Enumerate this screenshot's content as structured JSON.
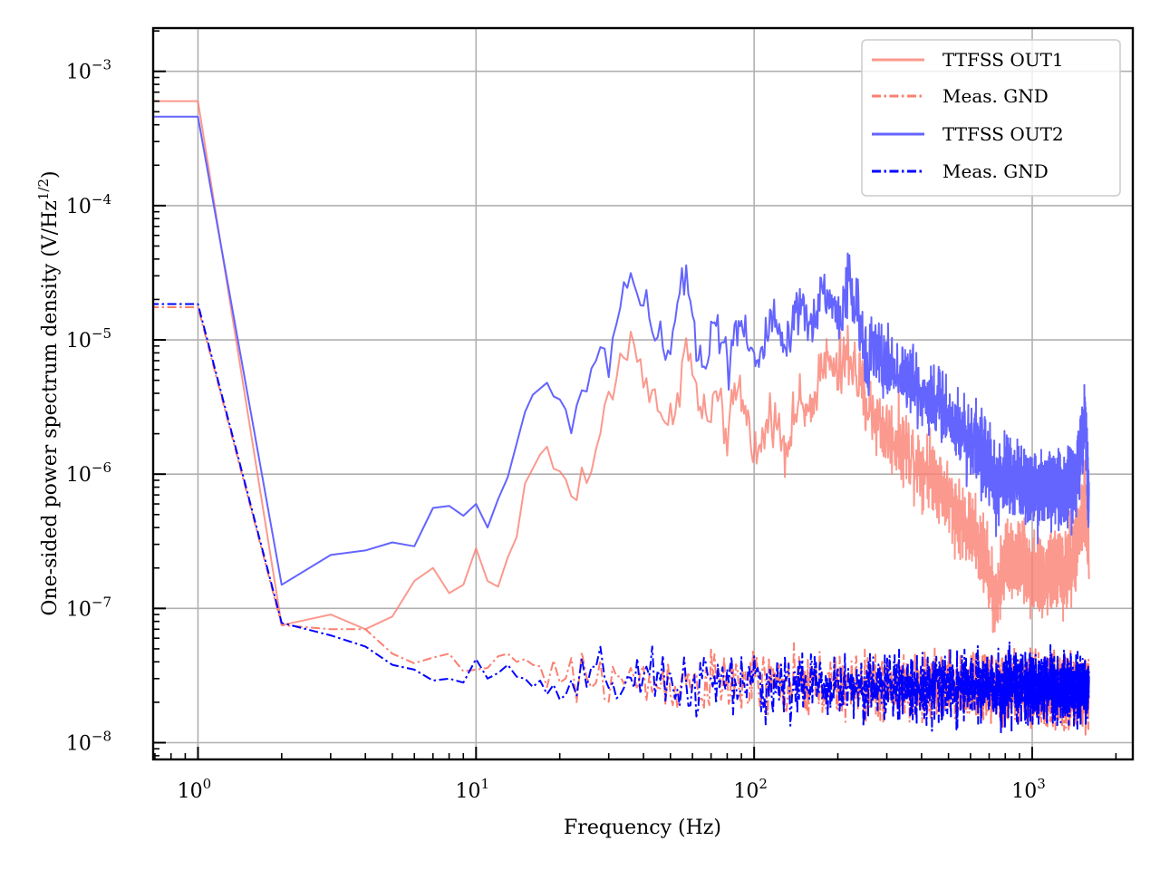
{
  "chart_data": {
    "type": "line",
    "title": "",
    "xlabel": "Frequency (Hz)",
    "ylabel": "One-sided power spectrum density (V/Hz^1/2)",
    "ylabel_parts": {
      "main": "One-sided power spectrum density (V/Hz",
      "sup": "1/2",
      "close": ")"
    },
    "xscale": "log",
    "yscale": "log",
    "xlim": [
      0.69,
      2300
    ],
    "ylim": [
      7.5e-09,
      0.0021
    ],
    "grid": true,
    "legend_position": "top-right",
    "xticks": [
      {
        "value": 1,
        "base": "10",
        "exp": "0"
      },
      {
        "value": 10,
        "base": "10",
        "exp": "1"
      },
      {
        "value": 100,
        "base": "10",
        "exp": "2"
      },
      {
        "value": 1000,
        "base": "10",
        "exp": "3"
      }
    ],
    "yticks": [
      {
        "value": 1e-08,
        "base": "10",
        "exp": "−8"
      },
      {
        "value": 1e-07,
        "base": "10",
        "exp": "−7"
      },
      {
        "value": 1e-06,
        "base": "10",
        "exp": "−6"
      },
      {
        "value": 1e-05,
        "base": "10",
        "exp": "−5"
      },
      {
        "value": 0.0001,
        "base": "10",
        "exp": "−4"
      },
      {
        "value": 0.001,
        "base": "10",
        "exp": "−3"
      }
    ],
    "series": [
      {
        "name": "TTFSS OUT1",
        "color": "#fa8072",
        "opacity": 0.8,
        "linestyle": "solid",
        "points": [
          [
            0.5,
            0.0006
          ],
          [
            1,
            0.0006
          ],
          [
            2,
            7.5e-08
          ],
          [
            3,
            9e-08
          ],
          [
            4,
            7e-08
          ],
          [
            5,
            8.7e-08
          ],
          [
            6,
            1.6e-07
          ],
          [
            7,
            2e-07
          ],
          [
            8,
            1.3e-07
          ],
          [
            9,
            1.5e-07
          ],
          [
            10,
            2.8e-07
          ],
          [
            11,
            1.6e-07
          ],
          [
            12,
            1.45e-07
          ],
          [
            13,
            2.4e-07
          ],
          [
            14,
            3.4e-07
          ],
          [
            15,
            8.5e-07
          ],
          [
            16,
            1.1e-06
          ],
          [
            17,
            1.4e-06
          ],
          [
            18,
            1.6e-06
          ],
          [
            19,
            1.1e-06
          ],
          [
            20,
            1.05e-06
          ],
          [
            22,
            7e-07
          ],
          [
            23,
            9e-07
          ],
          [
            25,
            9.5e-07
          ],
          [
            27,
            1.2e-06
          ],
          [
            28,
            2.2e-06
          ],
          [
            30,
            3.5e-06
          ],
          [
            33,
            7e-06
          ],
          [
            36,
            9.2e-06
          ],
          [
            40,
            6e-06
          ],
          [
            43,
            4.2e-06
          ],
          [
            46,
            3.3e-06
          ],
          [
            48,
            1.8e-06
          ],
          [
            52,
            3.5e-06
          ],
          [
            57,
            9e-06
          ],
          [
            62,
            4e-06
          ],
          [
            68,
            2.3e-06
          ],
          [
            72,
            3.8e-06
          ],
          [
            80,
            2e-06
          ],
          [
            88,
            4.5e-06
          ],
          [
            95,
            2.5e-06
          ],
          [
            103,
            1.3e-06
          ],
          [
            115,
            3e-06
          ],
          [
            130,
            1.6e-06
          ],
          [
            145,
            3.5e-06
          ],
          [
            160,
            2.5e-06
          ],
          [
            175,
            7.5e-06
          ],
          [
            200,
            5.5e-06
          ],
          [
            220,
            8e-06
          ],
          [
            250,
            3.5e-06
          ],
          [
            300,
            2e-06
          ],
          [
            350,
            1.6e-06
          ],
          [
            400,
            1.2e-06
          ],
          [
            450,
            1e-06
          ],
          [
            500,
            6.5e-07
          ],
          [
            560,
            4.5e-07
          ],
          [
            620,
            3.5e-07
          ],
          [
            700,
            2e-07
          ],
          [
            740,
            1e-07
          ],
          [
            800,
            2.5e-07
          ],
          [
            900,
            2.2e-07
          ],
          [
            1000,
            1.8e-07
          ],
          [
            1100,
            1.6e-07
          ],
          [
            1200,
            2e-07
          ],
          [
            1300,
            1.8e-07
          ],
          [
            1450,
            3e-07
          ],
          [
            1550,
            6e-07
          ],
          [
            1600,
            2.2e-07
          ]
        ],
        "noise_decades": 0.1
      },
      {
        "name": "Meas. GND",
        "color": "#fa8072",
        "opacity": 1.0,
        "linestyle": "dashdot",
        "points": [
          [
            0.5,
            1.75e-05
          ],
          [
            1,
            1.75e-05
          ],
          [
            2,
            7.5e-08
          ],
          [
            3,
            7e-08
          ],
          [
            4,
            7e-08
          ],
          [
            5,
            4.6e-08
          ],
          [
            6,
            3.9e-08
          ],
          [
            7,
            4.3e-08
          ],
          [
            8,
            4.6e-08
          ],
          [
            9,
            3.4e-08
          ],
          [
            10,
            3.5e-08
          ],
          [
            11,
            3.6e-08
          ],
          [
            12,
            4.4e-08
          ],
          [
            13,
            4.6e-08
          ],
          [
            14,
            4e-08
          ],
          [
            15,
            4.2e-08
          ],
          [
            16,
            3.8e-08
          ],
          [
            17,
            3.7e-08
          ],
          [
            18,
            2.6e-08
          ],
          [
            19,
            4.1e-08
          ],
          [
            20,
            2.8e-08
          ],
          [
            25,
            2.8e-08
          ],
          [
            30,
            3.2e-08
          ],
          [
            40,
            2.7e-08
          ],
          [
            50,
            2.9e-08
          ],
          [
            100,
            2.7e-08
          ],
          [
            300,
            2.6e-08
          ],
          [
            1000,
            2.5e-08
          ],
          [
            1600,
            2.4e-08
          ]
        ],
        "noise_decades": 0.12
      },
      {
        "name": "TTFSS OUT2",
        "color": "#6464ff",
        "opacity": 1.0,
        "linestyle": "solid",
        "points": [
          [
            0.5,
            0.00046
          ],
          [
            1,
            0.00046
          ],
          [
            2,
            1.5e-07
          ],
          [
            3,
            2.5e-07
          ],
          [
            4,
            2.7e-07
          ],
          [
            5,
            3.1e-07
          ],
          [
            6,
            2.9e-07
          ],
          [
            7,
            5.6e-07
          ],
          [
            8,
            5.8e-07
          ],
          [
            9,
            4.9e-07
          ],
          [
            10,
            6e-07
          ],
          [
            11,
            4e-07
          ],
          [
            12,
            6.5e-07
          ],
          [
            13,
            9.5e-07
          ],
          [
            15,
            2.9e-06
          ],
          [
            16,
            3.9e-06
          ],
          [
            18,
            4.8e-06
          ],
          [
            19,
            3.8e-06
          ],
          [
            20,
            3.6e-06
          ],
          [
            22,
            2.4e-06
          ],
          [
            23,
            3.8e-06
          ],
          [
            25,
            3.3e-06
          ],
          [
            27,
            6.5e-06
          ],
          [
            28,
            7.8e-06
          ],
          [
            30,
            8.2e-06
          ],
          [
            32,
            1.2e-05
          ],
          [
            34,
            2.9e-05
          ],
          [
            36,
            2.8e-05
          ],
          [
            39,
            2.2e-05
          ],
          [
            42,
            1.3e-05
          ],
          [
            44,
            7e-06
          ],
          [
            46,
            1.4e-05
          ],
          [
            48,
            7.5e-06
          ],
          [
            52,
            1.3e-05
          ],
          [
            57,
            3e-05
          ],
          [
            62,
            1e-05
          ],
          [
            68,
            7e-06
          ],
          [
            72,
            1.6e-05
          ],
          [
            80,
            6.5e-06
          ],
          [
            88,
            1.5e-05
          ],
          [
            95,
            1.1e-05
          ],
          [
            103,
            6e-06
          ],
          [
            115,
            1.4e-05
          ],
          [
            130,
            8e-06
          ],
          [
            145,
            1.7e-05
          ],
          [
            160,
            1.2e-05
          ],
          [
            175,
            2.5e-05
          ],
          [
            200,
            1.5e-05
          ],
          [
            220,
            2.6e-05
          ],
          [
            250,
            9e-06
          ],
          [
            300,
            6.5e-06
          ],
          [
            350,
            5.5e-06
          ],
          [
            400,
            4e-06
          ],
          [
            450,
            3.5e-06
          ],
          [
            500,
            2.8e-06
          ],
          [
            560,
            2e-06
          ],
          [
            620,
            1.8e-06
          ],
          [
            700,
            1.2e-06
          ],
          [
            740,
            7e-07
          ],
          [
            800,
            1e-06
          ],
          [
            900,
            9e-07
          ],
          [
            1000,
            8e-07
          ],
          [
            1100,
            7e-07
          ],
          [
            1200,
            7.5e-07
          ],
          [
            1300,
            7e-07
          ],
          [
            1450,
            1e-06
          ],
          [
            1550,
            2.3e-06
          ],
          [
            1600,
            7e-07
          ]
        ],
        "noise_decades": 0.1
      },
      {
        "name": "Meas. GND",
        "color": "#0000ff",
        "opacity": 1.0,
        "linestyle": "dashdot",
        "points": [
          [
            0.5,
            1.85e-05
          ],
          [
            1,
            1.85e-05
          ],
          [
            2,
            7.8e-08
          ],
          [
            3,
            6.3e-08
          ],
          [
            4,
            5.2e-08
          ],
          [
            5,
            3.8e-08
          ],
          [
            6,
            3.5e-08
          ],
          [
            7,
            2.9e-08
          ],
          [
            8,
            3e-08
          ],
          [
            9,
            2.8e-08
          ],
          [
            10,
            4.2e-08
          ],
          [
            11,
            3e-08
          ],
          [
            12,
            3.3e-08
          ],
          [
            13,
            3.8e-08
          ],
          [
            14,
            3.1e-08
          ],
          [
            15,
            3e-08
          ],
          [
            16,
            2.6e-08
          ],
          [
            17,
            2.9e-08
          ],
          [
            18,
            2.3e-08
          ],
          [
            19,
            2.7e-08
          ],
          [
            20,
            2.1e-08
          ],
          [
            25,
            2.7e-08
          ],
          [
            30,
            3e-08
          ],
          [
            40,
            2.7e-08
          ],
          [
            50,
            2.8e-08
          ],
          [
            100,
            2.7e-08
          ],
          [
            300,
            2.6e-08
          ],
          [
            1000,
            2.6e-08
          ],
          [
            1600,
            2.5e-08
          ]
        ],
        "noise_decades": 0.12
      }
    ]
  }
}
